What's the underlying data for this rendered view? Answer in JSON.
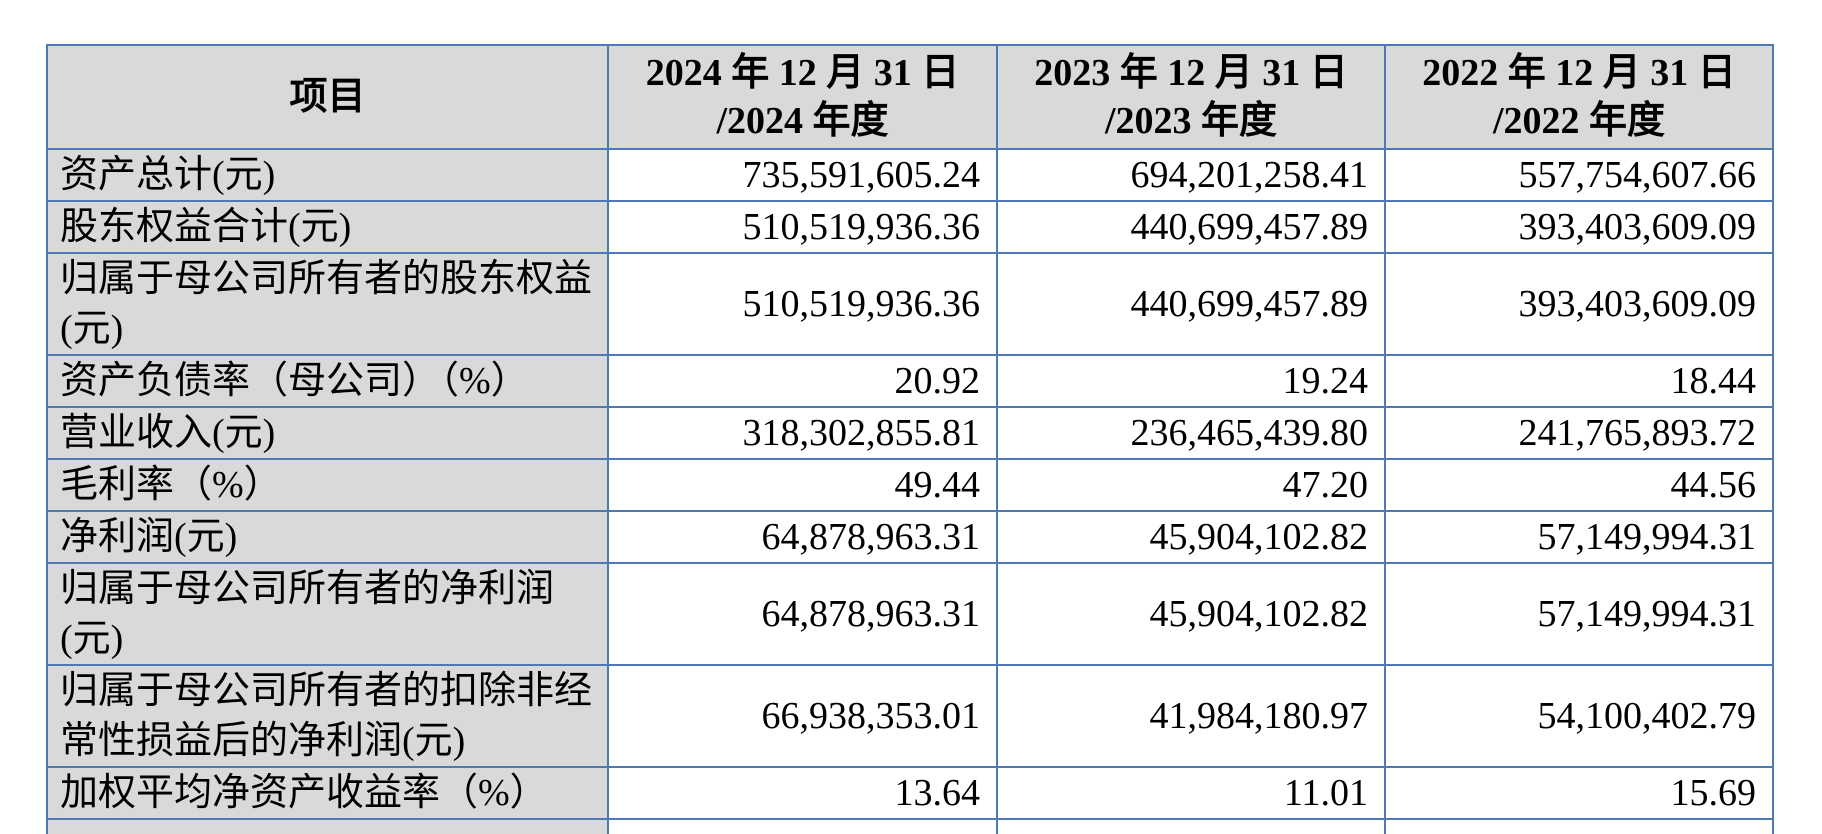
{
  "colors": {
    "table_border": "#4e79b5",
    "shaded_cell_bg": "#d9d9d9",
    "data_cell_bg": "#ffffff",
    "text": "#000000",
    "page_bg": "#ffffff"
  },
  "table": {
    "header": {
      "item_column": "项目",
      "period_columns": [
        {
          "line1": "2024 年 12 月 31 日",
          "line2": "/2024 年度"
        },
        {
          "line1": "2023 年 12 月 31 日",
          "line2": "/2023 年度"
        },
        {
          "line1": "2022 年 12 月 31 日",
          "line2": "/2022 年度"
        }
      ]
    },
    "rows": [
      {
        "label": "资产总计(元)",
        "values": [
          "735,591,605.24",
          "694,201,258.41",
          "557,754,607.66"
        ]
      },
      {
        "label": "股东权益合计(元)",
        "values": [
          "510,519,936.36",
          "440,699,457.89",
          "393,403,609.09"
        ]
      },
      {
        "label": "归属于母公司所有者的股东权益(元)",
        "values": [
          "510,519,936.36",
          "440,699,457.89",
          "393,403,609.09"
        ]
      },
      {
        "label": "资产负债率（母公司）（%）",
        "values": [
          "20.92",
          "19.24",
          "18.44"
        ]
      },
      {
        "label": "营业收入(元)",
        "values": [
          "318,302,855.81",
          "236,465,439.80",
          "241,765,893.72"
        ]
      },
      {
        "label": "毛利率（%）",
        "values": [
          "49.44",
          "47.20",
          "44.56"
        ]
      },
      {
        "label": "净利润(元)",
        "values": [
          "64,878,963.31",
          "45,904,102.82",
          "57,149,994.31"
        ]
      },
      {
        "label": "归属于母公司所有者的净利润(元)",
        "values": [
          "64,878,963.31",
          "45,904,102.82",
          "57,149,994.31"
        ]
      },
      {
        "label": "归属于母公司所有者的扣除非经常性损益后的净利润(元)",
        "values": [
          "66,938,353.01",
          "41,984,180.97",
          "54,100,402.79"
        ]
      },
      {
        "label": "加权平均净资产收益率（%）",
        "values": [
          "13.64",
          "11.01",
          "15.69"
        ]
      }
    ]
  }
}
